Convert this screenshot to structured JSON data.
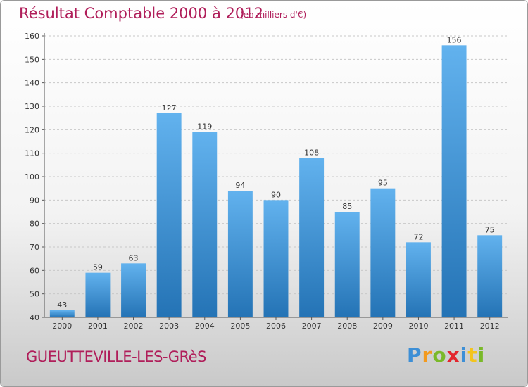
{
  "title": "Résultat Comptable 2000 à 2012",
  "subtitle": "(en milliers d'€)",
  "commune": "GUEUTTEVILLE-LES-GRèS",
  "logo": {
    "letters": [
      "P",
      "r",
      "o",
      "x",
      "i",
      "t",
      "i"
    ],
    "colors": [
      "#3d8fd6",
      "#f39a1e",
      "#7ab929",
      "#e3262e",
      "#3d8fd6",
      "#f3c41e",
      "#7ab929"
    ]
  },
  "colors": {
    "bar_top": "#62b2ee",
    "bar_bottom": "#2473b5",
    "grid": "#c8c8c8",
    "axis": "#555555"
  },
  "chart_data": {
    "type": "bar",
    "categories": [
      "2000",
      "2001",
      "2002",
      "2003",
      "2004",
      "2005",
      "2006",
      "2007",
      "2008",
      "2009",
      "2010",
      "2011",
      "2012"
    ],
    "values": [
      43,
      59,
      63,
      127,
      119,
      94,
      90,
      108,
      85,
      95,
      72,
      156,
      75
    ],
    "title": "Résultat Comptable 2000 à 2012",
    "ylim": [
      40,
      160
    ],
    "yticks": [
      40,
      50,
      60,
      70,
      80,
      90,
      100,
      110,
      120,
      130,
      140,
      150,
      160
    ],
    "grid": true,
    "legend": "none"
  }
}
